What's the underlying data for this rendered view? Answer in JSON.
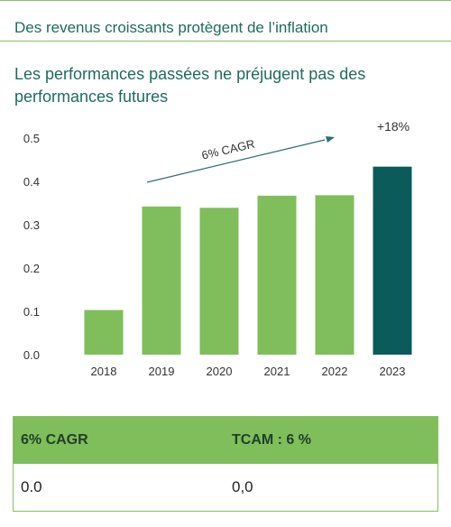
{
  "header": {
    "title": "Des revenus croissants protègent de l’inflation"
  },
  "subtitle": "Les performances passées ne préjugent pas des performances futures",
  "chart_data": {
    "type": "bar",
    "categories": [
      "2018",
      "2019",
      "2020",
      "2021",
      "2022",
      "2023"
    ],
    "values": [
      0.103,
      0.342,
      0.339,
      0.367,
      0.368,
      0.434
    ],
    "ylim": [
      0,
      0.5
    ],
    "yticks": [
      "0.0",
      "0.1",
      "0.2",
      "0.3",
      "0.4",
      "0.5"
    ],
    "grid": false,
    "annotations": {
      "trend": "6% CAGR",
      "last_bar": "+18%"
    },
    "colors": {
      "bar": "#7fbe5a",
      "highlight": "#0b5b5a",
      "arrow": "#2f6f6f"
    }
  },
  "table": {
    "headers": [
      "6% CAGR",
      "TCAM : 6 %"
    ],
    "row": [
      "0.0",
      "0,0"
    ]
  }
}
